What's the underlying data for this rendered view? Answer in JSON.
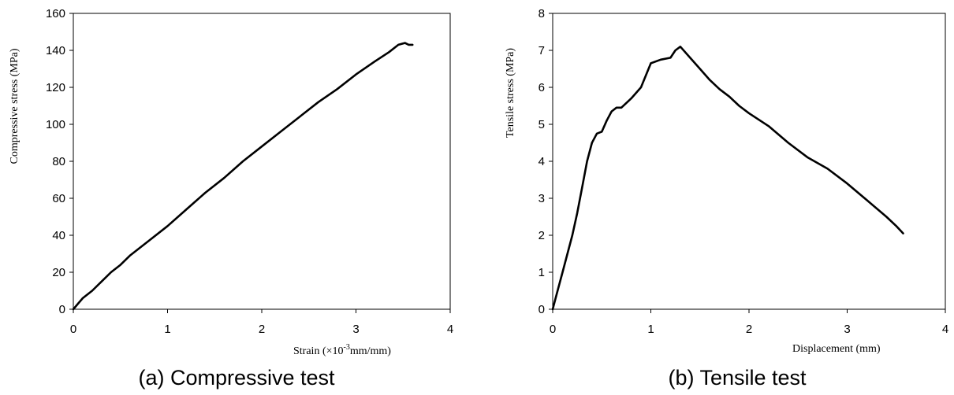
{
  "chart_data": [
    {
      "type": "line",
      "caption": "(a) Compressive test",
      "xlabel": "Strain (×10",
      "xlabel_sup": "-3",
      "xlabel_tail": "mm/mm)",
      "ylabel": "Compressive stress (MPa)",
      "xlim": [
        0,
        4
      ],
      "ylim": [
        0,
        160
      ],
      "xticks": [
        0,
        1,
        2,
        3,
        4
      ],
      "yticks": [
        0,
        20,
        40,
        60,
        80,
        100,
        120,
        140,
        160
      ],
      "grid": false,
      "legend": "none",
      "series": [
        {
          "x": [
            0,
            0.05,
            0.1,
            0.2,
            0.3,
            0.4,
            0.5,
            0.6,
            0.8,
            1.0,
            1.2,
            1.4,
            1.6,
            1.8,
            2.0,
            2.2,
            2.4,
            2.6,
            2.8,
            3.0,
            3.2,
            3.35,
            3.45,
            3.52,
            3.56,
            3.6
          ],
          "y": [
            0,
            3,
            6,
            10,
            15,
            20,
            24,
            29,
            37,
            45,
            54,
            63,
            71,
            80,
            88,
            96,
            104,
            112,
            119,
            127,
            134,
            139,
            143,
            144,
            143,
            143
          ]
        }
      ]
    },
    {
      "type": "line",
      "caption": "(b) Tensile test",
      "xlabel": "Displacement (mm)",
      "ylabel": "Tensile stress (MPa)",
      "xlim": [
        0,
        4
      ],
      "ylim": [
        0,
        8
      ],
      "xticks": [
        0,
        1,
        2,
        3,
        4
      ],
      "yticks": [
        0,
        1,
        2,
        3,
        4,
        5,
        6,
        7,
        8
      ],
      "grid": false,
      "legend": "none",
      "series": [
        {
          "x": [
            0,
            0.05,
            0.1,
            0.15,
            0.2,
            0.25,
            0.3,
            0.35,
            0.4,
            0.45,
            0.5,
            0.55,
            0.6,
            0.65,
            0.7,
            0.8,
            0.9,
            1.0,
            1.1,
            1.2,
            1.25,
            1.3,
            1.4,
            1.5,
            1.6,
            1.7,
            1.8,
            1.9,
            2.0,
            2.2,
            2.4,
            2.6,
            2.8,
            3.0,
            3.2,
            3.4,
            3.5,
            3.57
          ],
          "y": [
            0,
            0.5,
            1.0,
            1.5,
            2.0,
            2.6,
            3.3,
            4.0,
            4.5,
            4.75,
            4.8,
            5.1,
            5.35,
            5.45,
            5.45,
            5.7,
            6.0,
            6.65,
            6.75,
            6.8,
            7.0,
            7.1,
            6.8,
            6.5,
            6.2,
            5.95,
            5.75,
            5.5,
            5.3,
            4.95,
            4.5,
            4.1,
            3.8,
            3.4,
            2.95,
            2.5,
            2.25,
            2.05
          ]
        }
      ]
    }
  ]
}
